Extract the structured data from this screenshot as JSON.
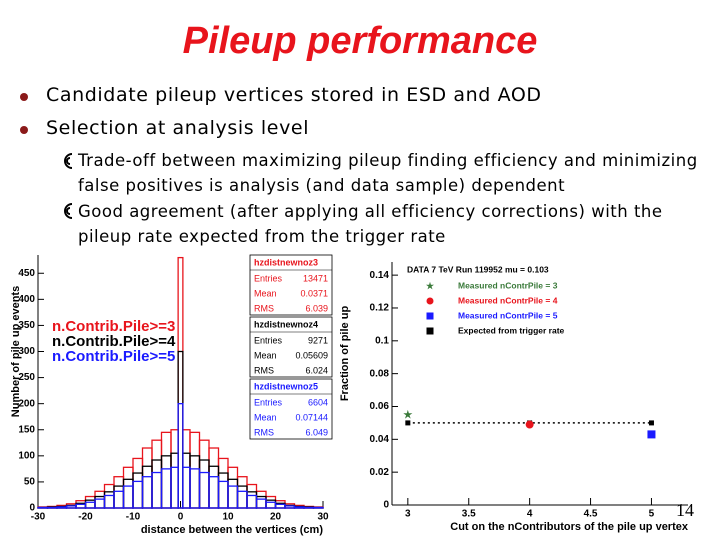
{
  "title": "Pileup performance",
  "bullets": [
    {
      "text": "Candidate pileup vertices stored in ESD and AOD"
    },
    {
      "text": "Selection at analysis level",
      "sub": [
        "Trade-off between maximizing pileup finding efficiency and minimizing false positives is analysis (and data sample) dependent",
        "Good agreement (after applying all efficiency corrections) with the pileup rate expected from the trigger rate"
      ]
    }
  ],
  "page_number": 14,
  "chart_data": [
    {
      "type": "histogram",
      "xlabel": "distance between the vertices (cm)",
      "ylabel": "Number of pile up events",
      "xlim": [
        -30,
        30
      ],
      "ylim": [
        0,
        485
      ],
      "xticks": [
        -30,
        -20,
        -10,
        0,
        10,
        20,
        30
      ],
      "yticks": [
        0,
        50,
        100,
        150,
        200,
        250,
        300,
        350,
        400,
        450
      ],
      "bins": [
        -30,
        -28,
        -26,
        -24,
        -22,
        -20,
        -18,
        -16,
        -14,
        -12,
        -10,
        -8,
        -6,
        -4,
        -2,
        -0.5,
        0.5,
        2,
        4,
        6,
        8,
        10,
        12,
        14,
        16,
        18,
        20,
        22,
        24,
        26,
        28,
        30
      ],
      "series": [
        {
          "name": "n.Contrib.Pile>=3",
          "color": "#e8141c",
          "values": [
            2,
            3,
            5,
            8,
            14,
            22,
            32,
            45,
            60,
            78,
            95,
            115,
            130,
            145,
            150,
            480,
            150,
            145,
            130,
            115,
            95,
            78,
            60,
            45,
            32,
            22,
            14,
            8,
            5,
            3,
            2
          ]
        },
        {
          "name": "n.Contrib.Pile>=4",
          "color": "#000000",
          "values": [
            1,
            2,
            3,
            5,
            9,
            15,
            22,
            31,
            42,
            55,
            67,
            80,
            92,
            100,
            105,
            300,
            105,
            100,
            92,
            80,
            67,
            55,
            42,
            31,
            22,
            15,
            9,
            5,
            3,
            2,
            1
          ]
        },
        {
          "name": "n.Contrib.Pile>=5",
          "color": "#1a1aff",
          "values": [
            1,
            1,
            2,
            4,
            7,
            11,
            17,
            24,
            32,
            42,
            51,
            60,
            68,
            75,
            78,
            200,
            78,
            75,
            68,
            60,
            51,
            42,
            32,
            24,
            17,
            11,
            7,
            4,
            2,
            1,
            1
          ]
        }
      ],
      "stats_boxes": [
        {
          "name": "hzdistnewnoz3",
          "entries_label": "Entries",
          "entries": 13471,
          "mean_label": "Mean",
          "mean": 0.0371,
          "rms_label": "RMS",
          "rms": 6.039
        },
        {
          "name": "hzdistnewnoz4",
          "entries_label": "Entries",
          "entries": 9271,
          "mean_label": "Mean",
          "mean": 0.05609,
          "rms_label": "RMS",
          "rms": 6.024
        },
        {
          "name": "hzdistnewnoz5",
          "entries_label": "Entries",
          "entries": 6604,
          "mean_label": "Mean",
          "mean": 0.07144,
          "rms_label": "RMS",
          "rms": 6.049
        }
      ]
    },
    {
      "type": "scatter",
      "annotation": "DATA 7 TeV Run 119952 mu = 0.103",
      "xlabel": "Cut on the nContributors of the pile up vertex",
      "ylabel": "Fraction of pile up",
      "xlim": [
        2.87,
        5.3
      ],
      "ylim": [
        0,
        0.148
      ],
      "xticks": [
        3,
        3.5,
        4,
        4.5,
        5
      ],
      "yticks": [
        0,
        0.02,
        0.04,
        0.06,
        0.08,
        0.1,
        0.12,
        0.14
      ],
      "series": [
        {
          "name": "Measured nContrPile = 3",
          "color": "#3a7a3a",
          "marker": "star",
          "x": [
            3
          ],
          "values": [
            0.055
          ]
        },
        {
          "name": "Measured nContrPile = 4",
          "color": "#e8141c",
          "marker": "circle",
          "x": [
            4
          ],
          "values": [
            0.049
          ]
        },
        {
          "name": "Measured nContrPile = 5",
          "color": "#1a1aff",
          "marker": "square",
          "x": [
            5
          ],
          "values": [
            0.043
          ]
        },
        {
          "name": "Expected from trigger rate",
          "color": "#000000",
          "marker": "square",
          "line": "dotted",
          "x": [
            3,
            4,
            5
          ],
          "values": [
            0.05,
            0.05,
            0.05
          ]
        }
      ]
    }
  ]
}
